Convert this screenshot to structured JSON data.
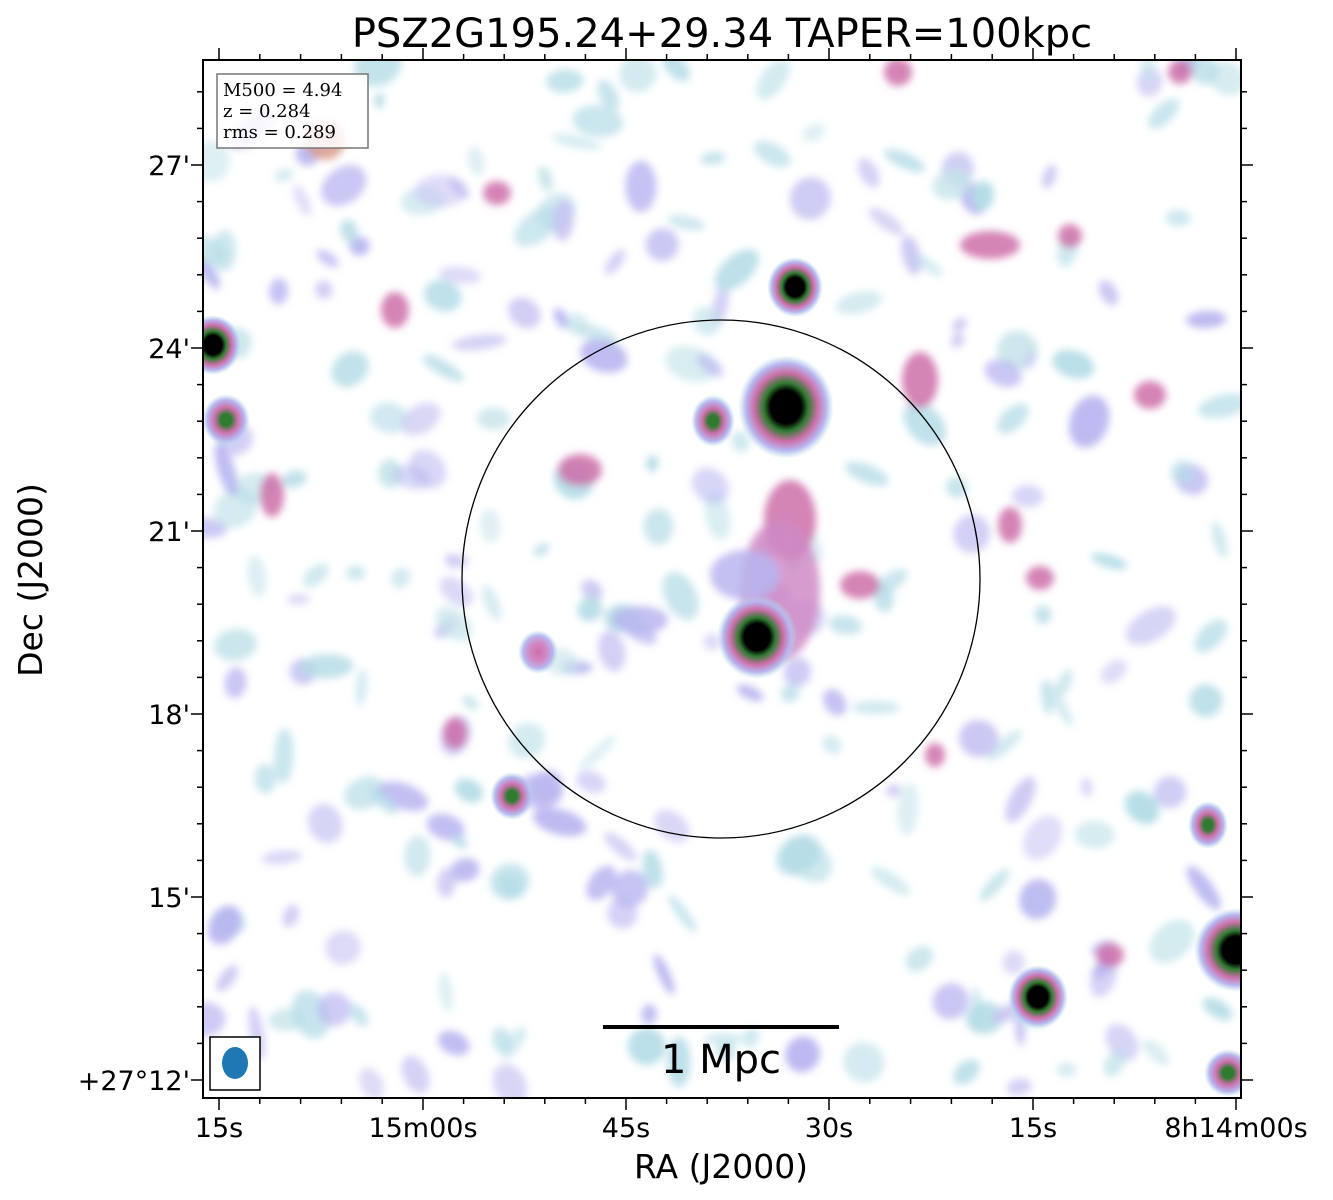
{
  "chart_data": {
    "type": "heatmap",
    "title": "PSZ2G195.24+29.34 TAPER=100kpc",
    "xlabel": "RA (J2000)",
    "ylabel": "Dec (J2000)",
    "x_ticks": [
      "15s",
      "15m00s",
      "45s",
      "30s",
      "15s",
      "8h14m00s"
    ],
    "y_ticks": [
      "+27°12'",
      "15'",
      "18'",
      "21'",
      "24'",
      "27'"
    ],
    "info_box": {
      "position": "top-left",
      "lines": [
        "M500 = 4.94",
        "z = 0.284",
        "rms = 0.289"
      ]
    },
    "scale_bar_label": "1 Mpc",
    "colors": {
      "faint": "#b4dce6",
      "low": "#b8b6f0",
      "mid": "#cc6fa8",
      "high": "#2f7b30",
      "peak": "#000000",
      "beam": "#1f77b4"
    }
  }
}
